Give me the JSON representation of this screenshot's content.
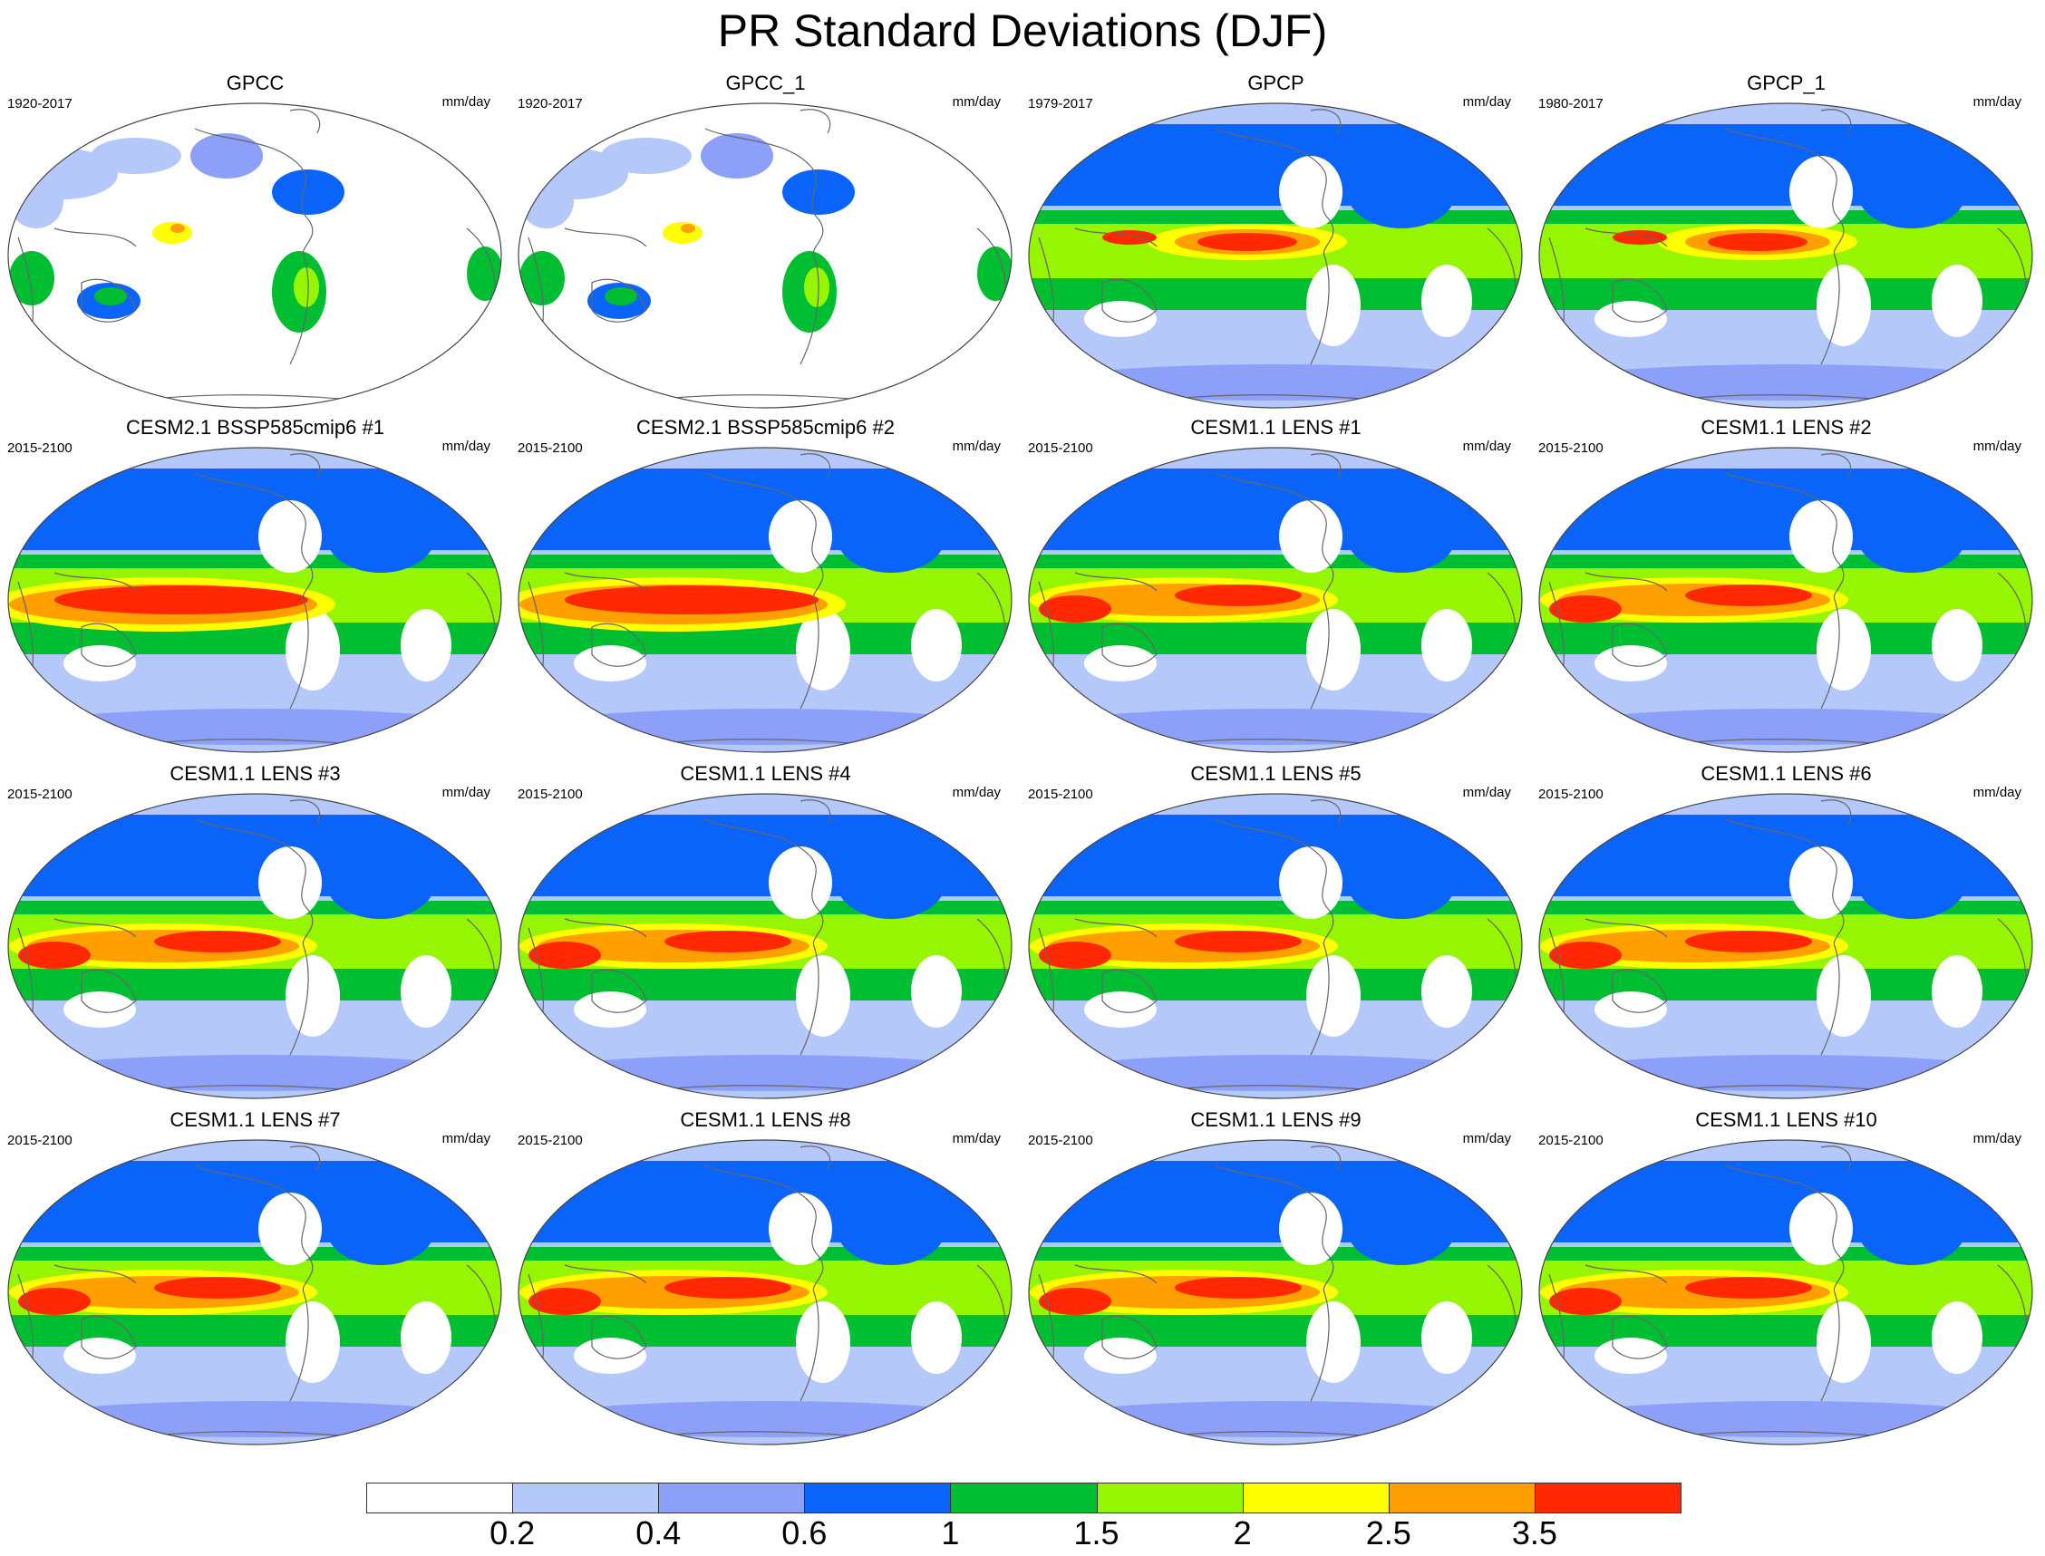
{
  "title": "PR Standard Deviations (DJF)",
  "units": "mm/day",
  "colorbar": {
    "colors": [
      "#ffffff",
      "#b4c8fa",
      "#8ca0fa",
      "#0a64fa",
      "#00be32",
      "#96f500",
      "#ffff00",
      "#ffa000",
      "#ff2800"
    ],
    "tick_labels": [
      "0.2",
      "0.4",
      "0.6",
      "1",
      "1.5",
      "2",
      "2.5",
      "3.5"
    ]
  },
  "panels": [
    {
      "title": "GPCC",
      "period": "1920-2017",
      "units": "mm/day",
      "intensity": 0
    },
    {
      "title": "GPCC_1",
      "period": "1920-2017",
      "units": "mm/day",
      "intensity": 0
    },
    {
      "title": "GPCP",
      "period": "1979-2017",
      "units": "mm/day",
      "intensity": 1
    },
    {
      "title": "GPCP_1",
      "period": "1980-2017",
      "units": "mm/day",
      "intensity": 1
    },
    {
      "title": "CESM2.1 BSSP585cmip6 #1",
      "period": "2015-2100",
      "units": "mm/day",
      "intensity": 3
    },
    {
      "title": "CESM2.1 BSSP585cmip6 #2",
      "period": "2015-2100",
      "units": "mm/day",
      "intensity": 3
    },
    {
      "title": "CESM1.1 LENS #1",
      "period": "2015-2100",
      "units": "mm/day",
      "intensity": 2
    },
    {
      "title": "CESM1.1 LENS #2",
      "period": "2015-2100",
      "units": "mm/day",
      "intensity": 2
    },
    {
      "title": "CESM1.1 LENS #3",
      "period": "2015-2100",
      "units": "mm/day",
      "intensity": 2
    },
    {
      "title": "CESM1.1 LENS #4",
      "period": "2015-2100",
      "units": "mm/day",
      "intensity": 2
    },
    {
      "title": "CESM1.1 LENS #5",
      "period": "2015-2100",
      "units": "mm/day",
      "intensity": 2
    },
    {
      "title": "CESM1.1 LENS #6",
      "period": "2015-2100",
      "units": "mm/day",
      "intensity": 2
    },
    {
      "title": "CESM1.1 LENS #7",
      "period": "2015-2100",
      "units": "mm/day",
      "intensity": 2
    },
    {
      "title": "CESM1.1 LENS #8",
      "period": "2015-2100",
      "units": "mm/day",
      "intensity": 2
    },
    {
      "title": "CESM1.1 LENS #9",
      "period": "2015-2100",
      "units": "mm/day",
      "intensity": 2
    },
    {
      "title": "CESM1.1 LENS #10",
      "period": "2015-2100",
      "units": "mm/day",
      "intensity": 2
    }
  ]
}
